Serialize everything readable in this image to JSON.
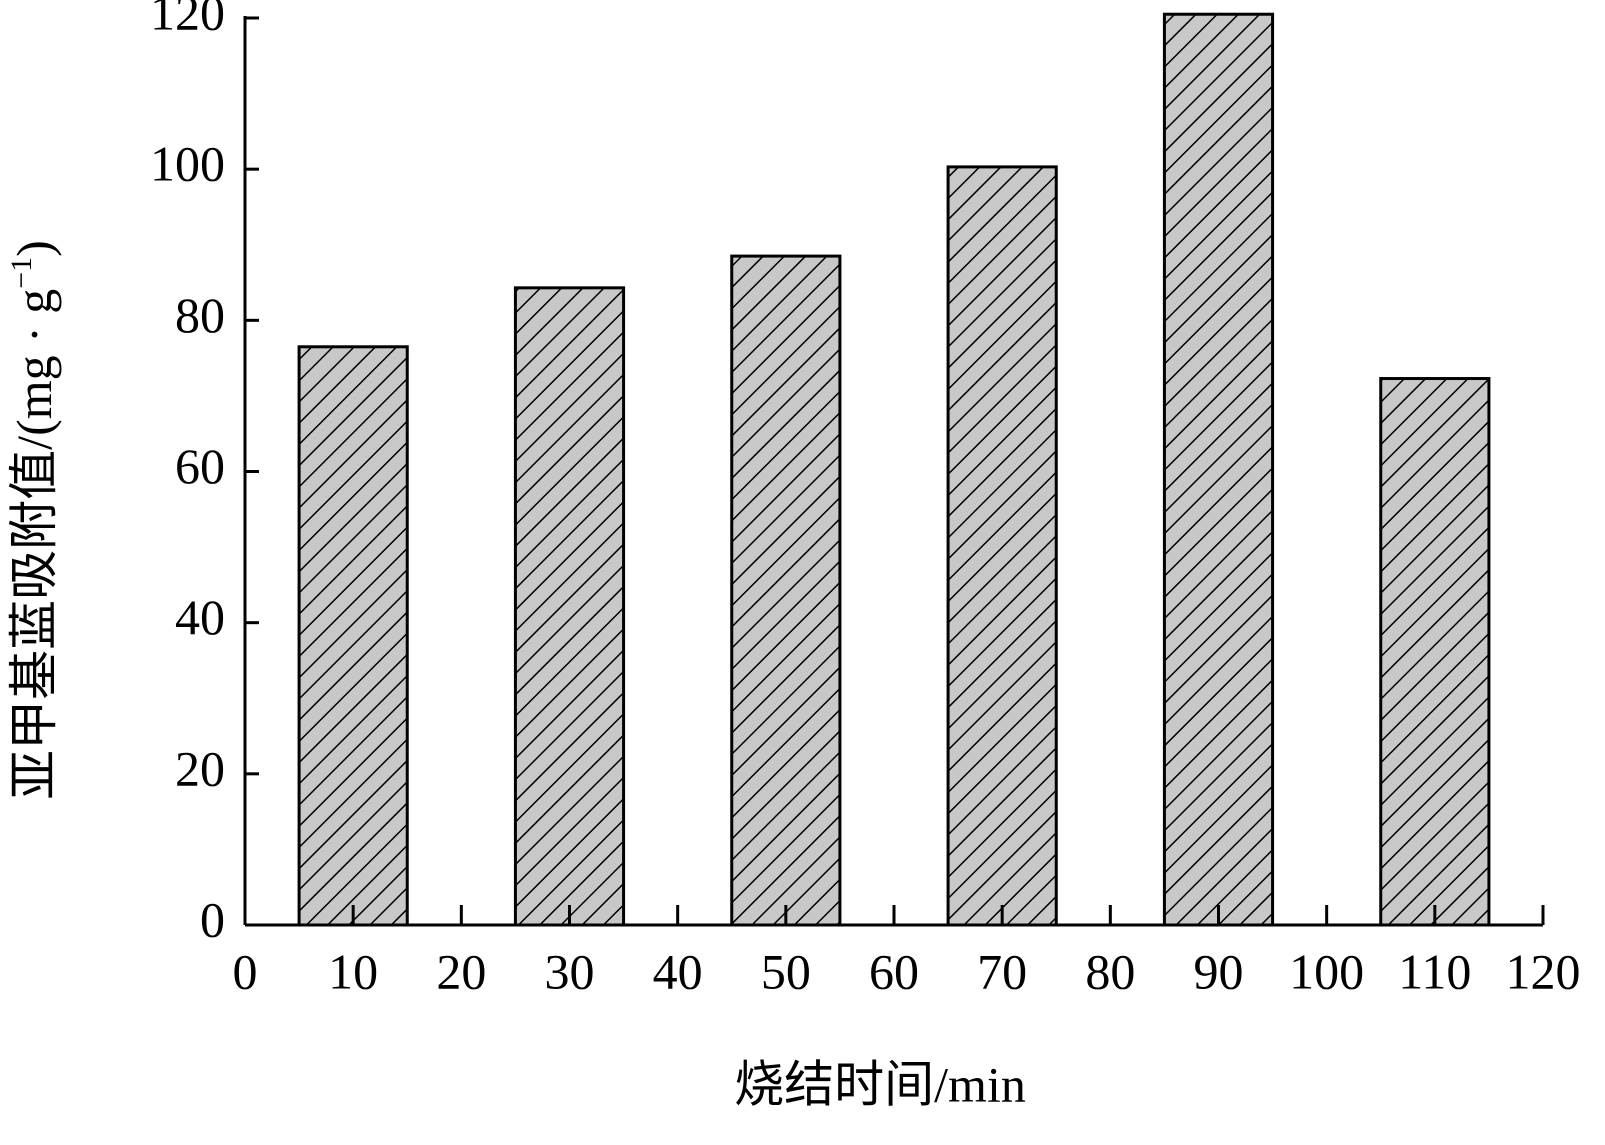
{
  "chart_data": {
    "type": "bar",
    "x_label": "烧结时间/min",
    "y_label": "亚甲基蓝吸附值/(mg · g",
    "y_label_sup": "−1",
    "y_label_end": ")",
    "x": [
      10,
      30,
      50,
      70,
      90,
      110
    ],
    "values": [
      76.5,
      84.3,
      88.5,
      100.3,
      120.5,
      72.3
    ],
    "color": "#c8c8c8",
    "hatch": true,
    "xlim": [
      0,
      120
    ],
    "xticks": [
      0,
      10,
      20,
      30,
      40,
      50,
      60,
      70,
      80,
      90,
      100,
      110,
      120
    ],
    "ylim": [
      0,
      120
    ],
    "yticks": [
      0,
      20,
      40,
      60,
      80,
      100,
      120
    ],
    "grid": false
  }
}
